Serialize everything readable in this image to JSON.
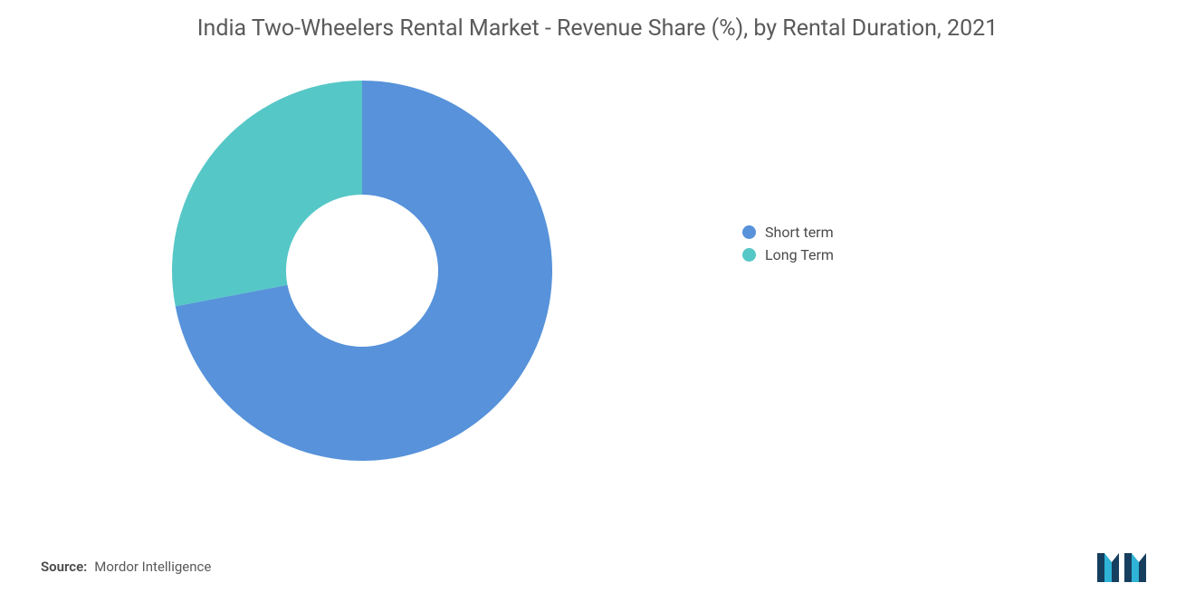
{
  "title": "India Two-Wheelers Rental Market - Revenue Share (%), by Rental Duration, 2021",
  "chart": {
    "type": "donut",
    "inner_radius_pct": 40,
    "outer_radius_pct": 100,
    "background_color": "#ffffff",
    "segments": [
      {
        "label": "Short term",
        "value": 72,
        "color": "#5792da"
      },
      {
        "label": "Long Term",
        "value": 28,
        "color": "#56c7c7"
      }
    ]
  },
  "legend": {
    "items": [
      {
        "label": "Short term",
        "color": "#5792da"
      },
      {
        "label": "Long Term",
        "color": "#56c7c7"
      }
    ],
    "fontsize": 16,
    "text_color": "#4a4a4a"
  },
  "source": {
    "label": "Source:",
    "value": "Mordor Intelligence"
  },
  "logo": {
    "bar_color": "#163f5f",
    "accent_color": "#2fb3d6"
  }
}
